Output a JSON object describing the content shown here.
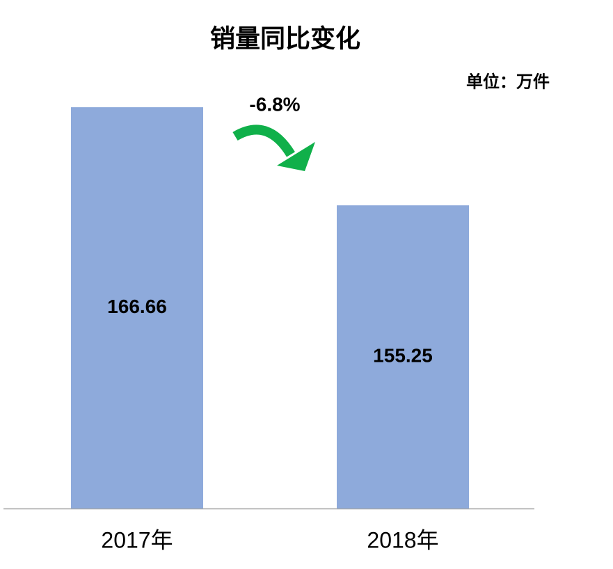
{
  "chart_data": {
    "type": "bar",
    "title": "销量同比变化",
    "unit_note": "单位：万件",
    "annotation": "-6.8%",
    "categories": [
      "2017年",
      "2018年"
    ],
    "values": [
      166.66,
      155.25
    ],
    "color": "#8eaadb",
    "ylim": [
      120,
      175
    ]
  }
}
